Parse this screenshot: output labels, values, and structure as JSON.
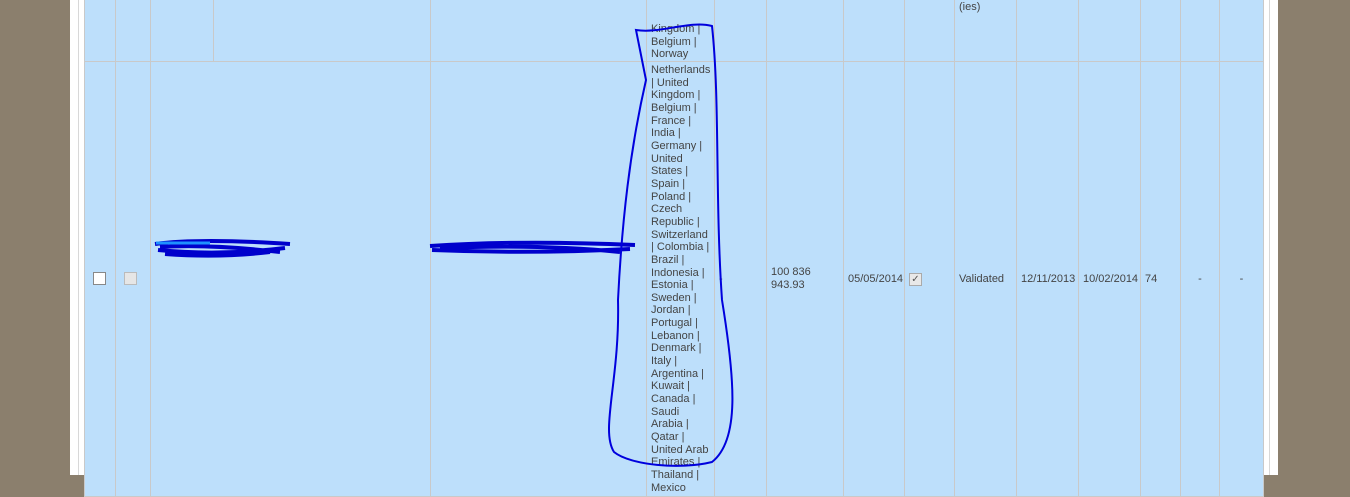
{
  "previous_row": {
    "countries_tail": "Kingdom | Belgium | Norway",
    "status_tail": "(ies)"
  },
  "row": {
    "countries": "Netherlands | United Kingdom | Belgium | France | India | Germany | United States | Spain | Poland | Czech Republic | Switzerland | Colombia | Brazil | Indonesia | Estonia | Sweden | Jordan | Portugal | Lebanon | Denmark | Italy | Argentina | Kuwait | Canada | Saudi Arabia | Qatar | United Arab Emirates | Thailand | Mexico",
    "dash1": "-",
    "amount": "100 836 943.93",
    "date1": "05/05/2014",
    "checked": true,
    "check_glyph": "✓",
    "status": "Validated",
    "date2": "12/11/2013",
    "date3": "10/02/2014",
    "count": "74",
    "dash2": "-",
    "dash3": "-"
  },
  "colors": {
    "row_bg": "#bddffb",
    "grid": "#c9c9c9",
    "scribble": "#0000cc",
    "backdrop": "#8b7f6d"
  }
}
